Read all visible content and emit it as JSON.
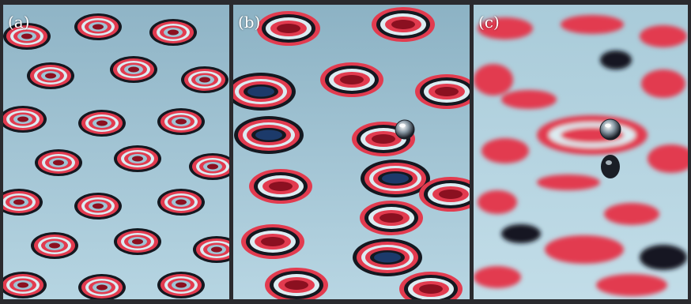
{
  "panels": [
    {
      "label": "(a)"
    },
    {
      "label": "(b)"
    },
    {
      "label": "(c)"
    }
  ],
  "colors": {
    "background_light": "#9fc3d4",
    "red": "#e23b4f",
    "dark_red": "#8b1020",
    "dark": "#141820",
    "navy": "#1c3a6a",
    "pale": "#dcecf2"
  }
}
